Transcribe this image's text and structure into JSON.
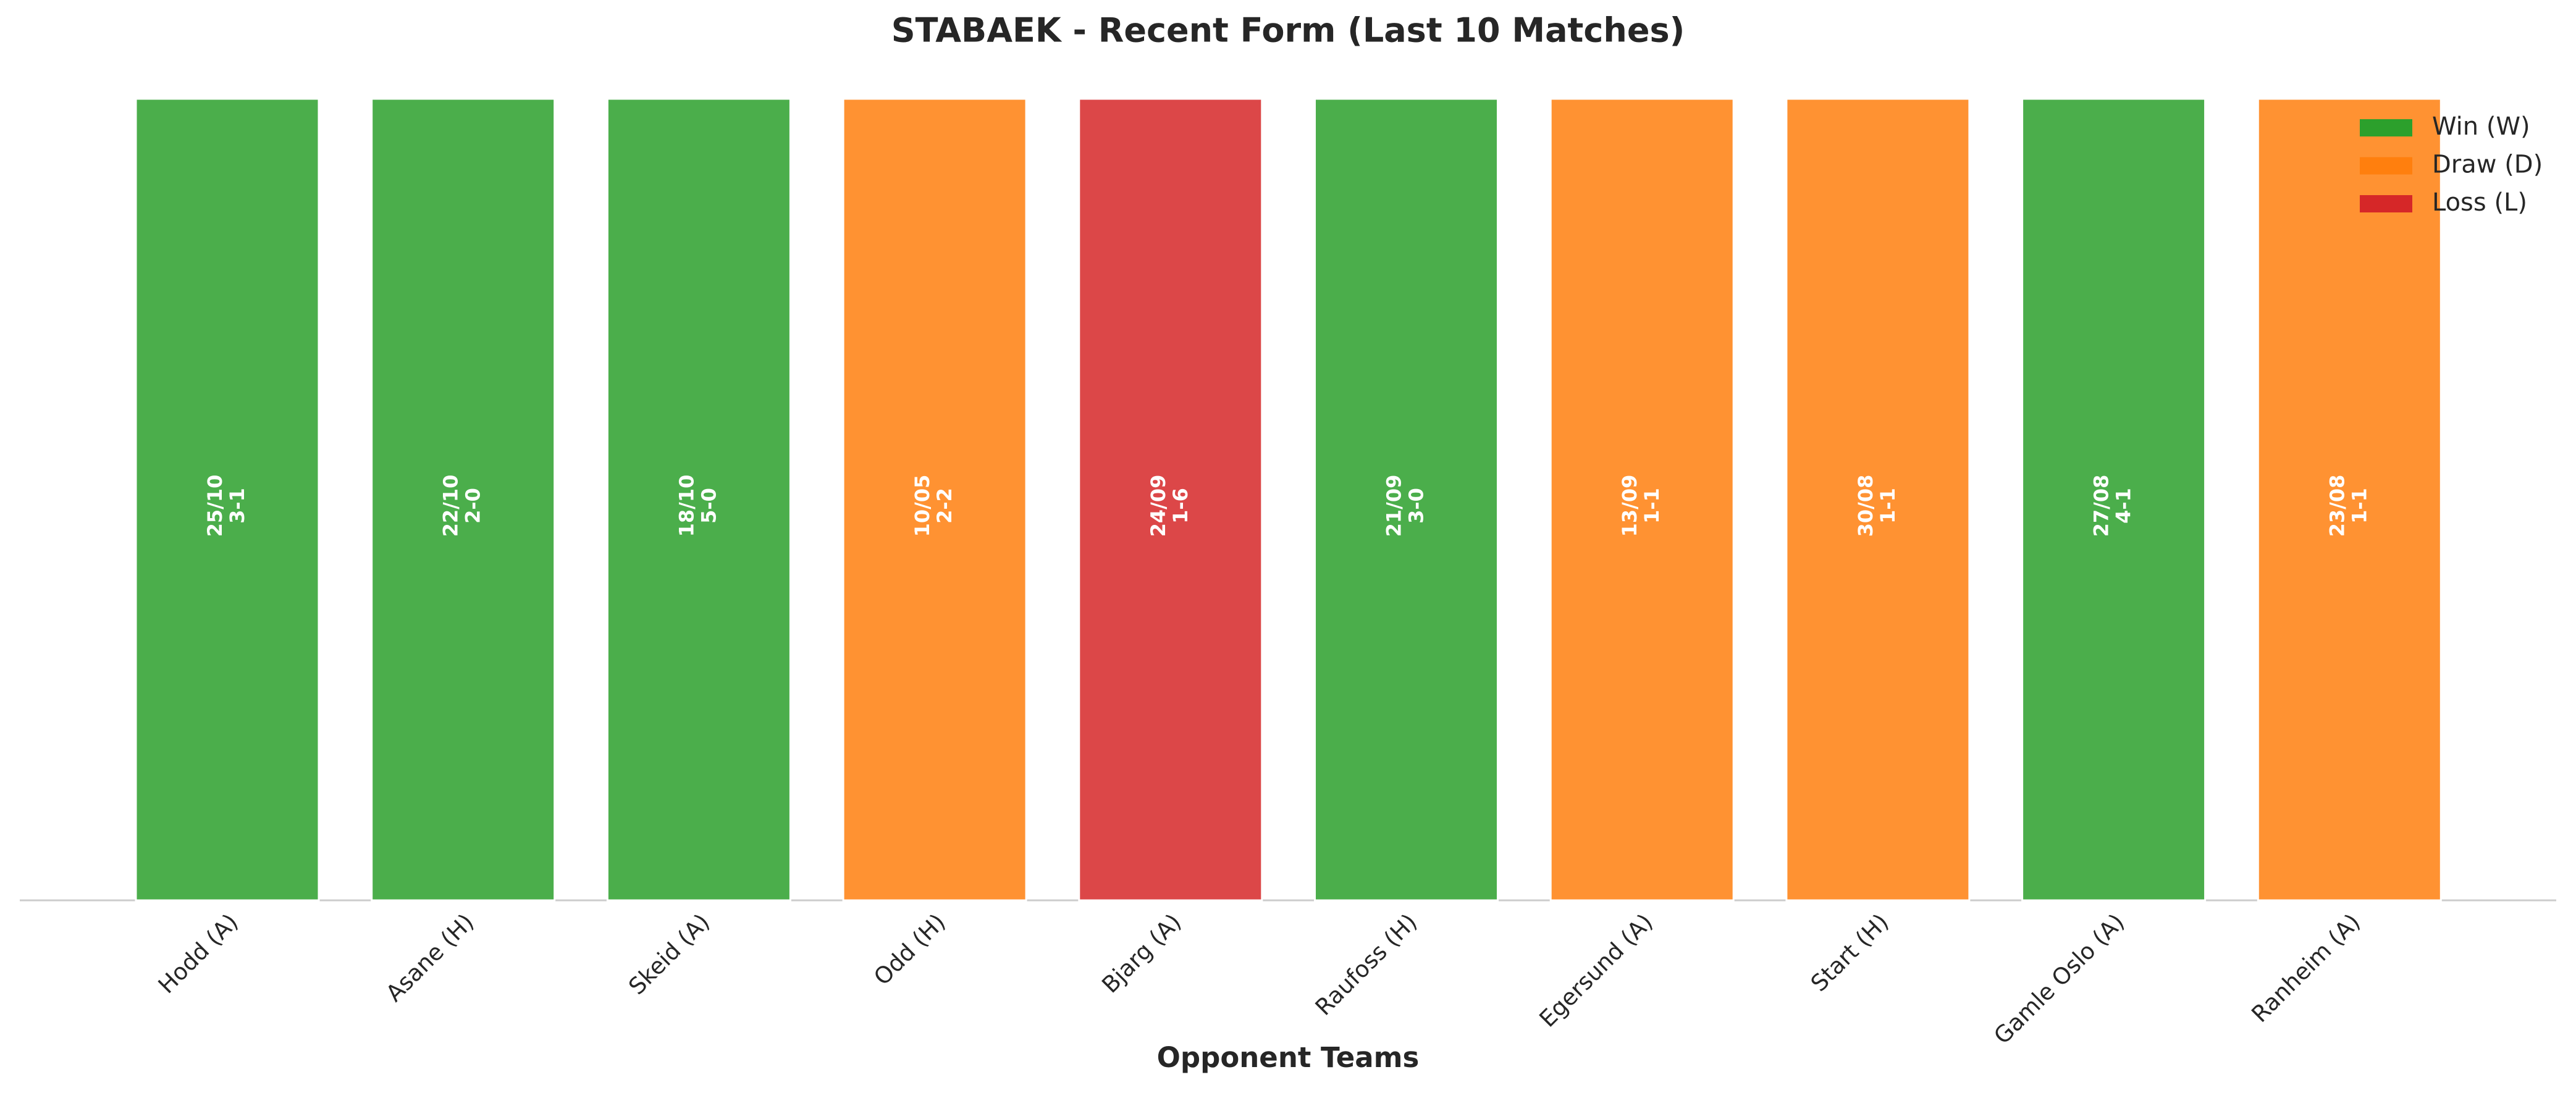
{
  "chart_data": {
    "type": "bar",
    "title": "STABAEK - Recent Form (Last 10 Matches)",
    "x_label": "Opponent Teams",
    "categories": [
      "Hodd (A)",
      "Asane (H)",
      "Skeid (A)",
      "Odd (H)",
      "Bjarg (A)",
      "Raufoss (H)",
      "Egersund (A)",
      "Start (H)",
      "Gamle Oslo (A)",
      "Ranheim (A)"
    ],
    "values": [
      1,
      1,
      1,
      1,
      1,
      1,
      1,
      1,
      1,
      1
    ],
    "dates": [
      "25/10",
      "22/10",
      "18/10",
      "10/05",
      "24/09",
      "21/09",
      "13/09",
      "30/08",
      "27/08",
      "23/08"
    ],
    "scores": [
      "3-1",
      "2-0",
      "5-0",
      "2-2",
      "1-6",
      "3-0",
      "1-1",
      "1-1",
      "4-1",
      "1-1"
    ],
    "colors": [
      "#2ca02c",
      "#2ca02c",
      "#2ca02c",
      "#ff7f0e",
      "#d62728",
      "#2ca02c",
      "#ff7f0e",
      "#ff7f0e",
      "#2ca02c",
      "#ff7f0e"
    ],
    "ylim": [
      0,
      1
    ],
    "legend": [
      {
        "name": "Win (W)",
        "color": "#2ca02c"
      },
      {
        "name": "Draw (D)",
        "color": "#ff7f0e"
      },
      {
        "name": "Loss (L)",
        "color": "#d62728"
      }
    ],
    "legend_position": "upper right"
  }
}
